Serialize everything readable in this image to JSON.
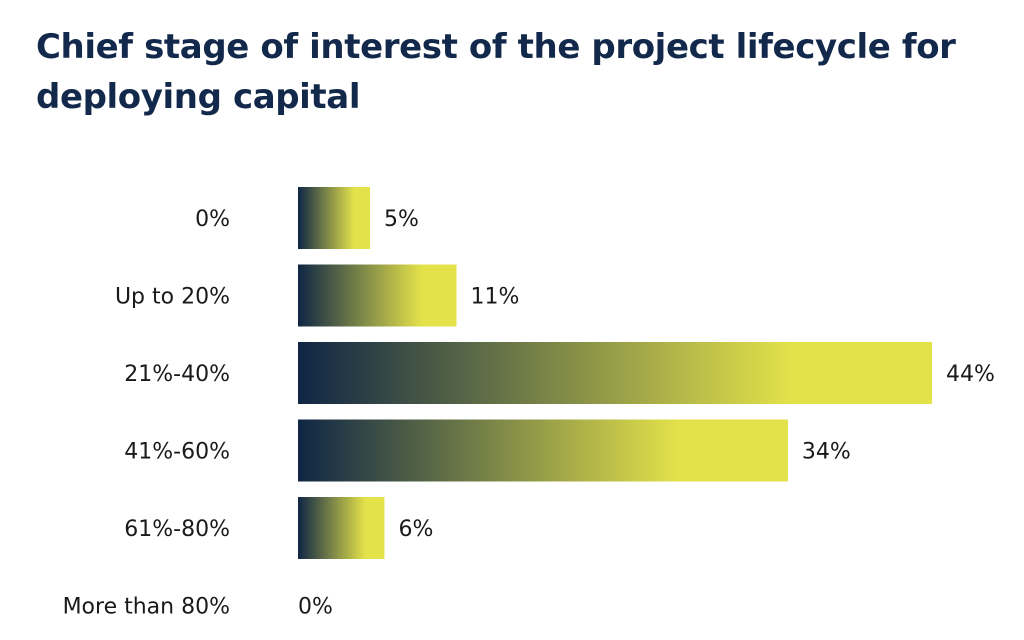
{
  "chart_data": {
    "type": "bar",
    "orientation": "horizontal",
    "title": "Chief stage of interest of the project lifecycle for deploying capital",
    "categories": [
      "0%",
      "Up to 20%",
      "21%-40%",
      "41%-60%",
      "61%-80%",
      "More than 80%"
    ],
    "values": [
      5,
      11,
      44,
      34,
      6,
      0
    ],
    "value_labels": [
      "5%",
      "11%",
      "44%",
      "34%",
      "6%",
      "0%"
    ],
    "value_unit": "%",
    "xlim": [
      0,
      44
    ],
    "grid": false,
    "legend": "none",
    "colors": {
      "gradient_start": "#0f2645",
      "gradient_end": "#e4e24a",
      "title": "#13294b",
      "text": "#1a1a1a"
    }
  }
}
